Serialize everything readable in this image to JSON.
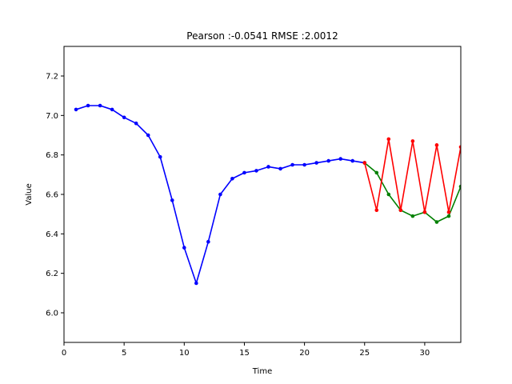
{
  "chart_data": {
    "type": "line",
    "title": "Pearson :-0.0541  RMSE :2.0012",
    "xlabel": "Time",
    "ylabel": "Value",
    "xlim": [
      0,
      33
    ],
    "ylim": [
      5.85,
      7.35
    ],
    "xticks": [
      0,
      5,
      10,
      15,
      20,
      25,
      30
    ],
    "yticks": [
      6.0,
      6.2,
      6.4,
      6.6,
      6.8,
      7.0,
      7.2
    ],
    "xtick_labels": [
      "0",
      "5",
      "10",
      "15",
      "20",
      "25",
      "30"
    ],
    "ytick_labels": [
      "6.0",
      "6.2",
      "6.4",
      "6.6",
      "6.8",
      "7.0",
      "7.2"
    ],
    "grid": false,
    "series": [
      {
        "color": "#0000ff",
        "x": [
          1,
          2,
          3,
          4,
          5,
          6,
          7,
          8,
          9,
          10,
          11,
          12,
          13,
          14,
          15,
          16,
          17,
          18,
          19,
          20,
          21,
          22,
          23,
          24,
          25
        ],
        "y": [
          7.03,
          7.05,
          7.05,
          7.03,
          6.99,
          6.96,
          6.9,
          6.79,
          6.57,
          6.33,
          6.15,
          6.36,
          6.6,
          6.68,
          6.71,
          6.72,
          6.74,
          6.73,
          6.75,
          6.75,
          6.76,
          6.77,
          6.78,
          6.77,
          6.76
        ]
      },
      {
        "color": "#008000",
        "x": [
          25,
          26,
          27,
          28,
          29,
          30,
          31,
          32,
          33
        ],
        "y": [
          6.76,
          6.71,
          6.6,
          6.52,
          6.49,
          6.51,
          6.46,
          6.49,
          6.64
        ]
      },
      {
        "color": "#ff0000",
        "x": [
          25,
          26,
          27,
          28,
          29,
          30,
          31,
          32,
          33
        ],
        "y": [
          6.76,
          6.52,
          6.88,
          6.52,
          6.87,
          6.51,
          6.85,
          6.51,
          6.84
        ]
      }
    ]
  }
}
